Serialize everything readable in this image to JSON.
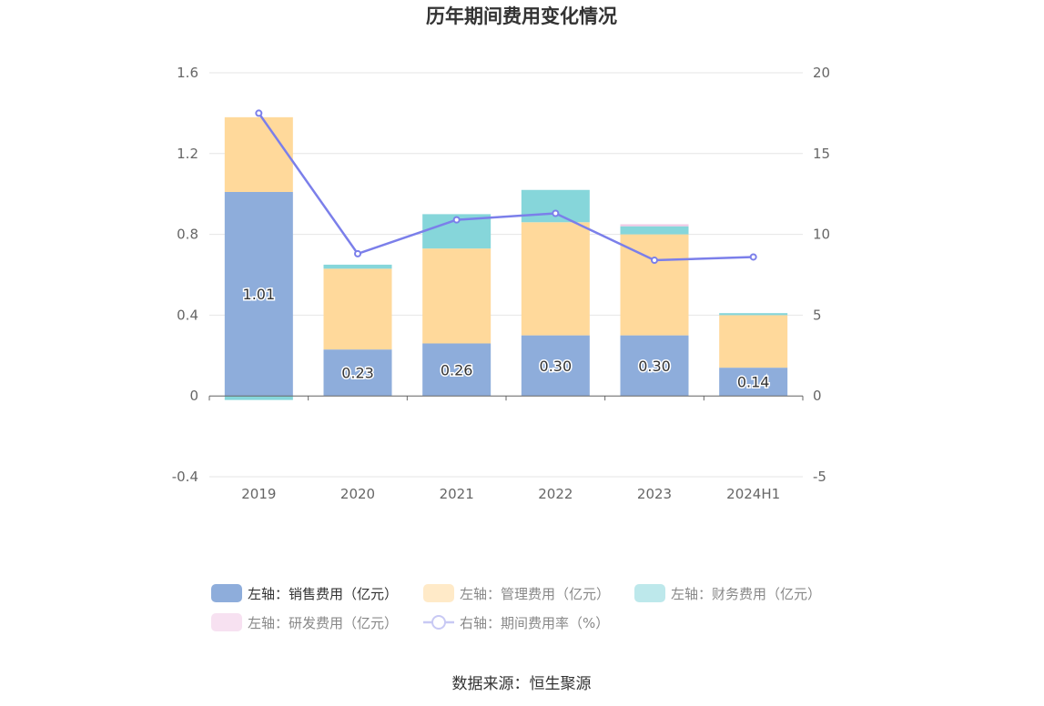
{
  "chart_data": {
    "type": "bar",
    "title": "历年期间费用变化情况",
    "categories": [
      "2019",
      "2020",
      "2021",
      "2022",
      "2023",
      "2024H1"
    ],
    "series": [
      {
        "name": "左轴：销售费用（亿元）",
        "axis": "left",
        "color": "#8eaddb",
        "values": [
          1.01,
          0.23,
          0.26,
          0.3,
          0.3,
          0.14
        ],
        "labels": [
          "1.01",
          "0.23",
          "0.26",
          "0.30",
          "0.30",
          "0.14"
        ]
      },
      {
        "name": "左轴：管理费用（亿元）",
        "axis": "left",
        "color": "#ffd99b",
        "values": [
          0.37,
          0.4,
          0.47,
          0.56,
          0.5,
          0.26
        ]
      },
      {
        "name": "左轴：财务费用（亿元）",
        "axis": "left",
        "color": "#86d6da",
        "values": [
          -0.02,
          0.02,
          0.17,
          0.16,
          0.04,
          0.01
        ]
      },
      {
        "name": "左轴：研发费用（亿元）",
        "axis": "left",
        "color": "#f0c9e6",
        "values": [
          0,
          0,
          0,
          0,
          0.01,
          0
        ]
      },
      {
        "name": "右轴：期间费用率（%）",
        "axis": "right",
        "type": "line",
        "color": "#7b7fea",
        "values": [
          17.5,
          8.8,
          10.9,
          11.3,
          8.4,
          8.6
        ]
      }
    ],
    "left_axis": {
      "ylim": [
        -0.4,
        1.6
      ],
      "ticks": [
        "1.6",
        "1.2",
        "0.8",
        "0.4",
        "0",
        "-0.4"
      ],
      "tick_values": [
        1.6,
        1.2,
        0.8,
        0.4,
        0,
        -0.4
      ]
    },
    "right_axis": {
      "ylim": [
        -5,
        20
      ],
      "ticks": [
        "20",
        "15",
        "10",
        "5",
        "0",
        "-5"
      ],
      "tick_values": [
        20,
        15,
        10,
        5,
        0,
        -5
      ]
    },
    "grid": true,
    "legend_position": "bottom",
    "legend_active": [
      true,
      false,
      false,
      false,
      false
    ]
  },
  "source": "数据来源：恒生聚源"
}
